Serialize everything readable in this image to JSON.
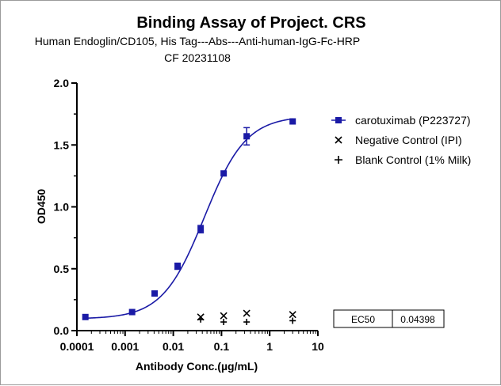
{
  "chart_data": {
    "type": "scatter",
    "title": "Binding Assay of Project. CRS",
    "subtitle_lines": [
      "Human Endoglin/CD105, His Tag---Abs---Anti-human-IgG-Fc-HRP",
      "CF 20231108"
    ],
    "xlabel": "Antibody Conc.(µg/mL)",
    "ylabel": "OD450",
    "x_scale": "log",
    "xlim": [
      0.0001,
      10
    ],
    "ylim": [
      0,
      2.0
    ],
    "x_tick_labels": [
      "0.0001",
      "0.001",
      "0.01",
      "0.1",
      "1",
      "10"
    ],
    "x_ticks": [
      0.0001,
      0.001,
      0.01,
      0.1,
      1,
      10
    ],
    "y_tick_labels": [
      "0.0",
      "0.5",
      "1.0",
      "1.5",
      "2.0"
    ],
    "y_ticks": [
      0,
      0.5,
      1.0,
      1.5,
      2.0
    ],
    "grid": false,
    "legend_position": "right",
    "series": [
      {
        "name": "carotuximab (P223727)",
        "marker": "square",
        "color": "#1a1aa6",
        "x": [
          0.00015,
          0.0014,
          0.0041,
          0.0123,
          0.037,
          0.111,
          0.333,
          3.0
        ],
        "y": [
          0.11,
          0.15,
          0.3,
          0.52,
          0.82,
          1.27,
          1.57,
          1.69
        ],
        "err": [
          0.01,
          0.01,
          0.015,
          0.025,
          0.03,
          0.01,
          0.07,
          0.01
        ],
        "fit_curve": {
          "bottom": 0.095,
          "top": 1.735,
          "ec50": 0.04398,
          "hill": 1.0
        }
      },
      {
        "name": "Negative Control (IPI)",
        "marker": "x",
        "color": "#000000",
        "x": [
          0.037,
          0.111,
          0.333,
          3.0
        ],
        "y": [
          0.11,
          0.12,
          0.14,
          0.13
        ]
      },
      {
        "name": "Blank Control (1% Milk)",
        "marker": "tick",
        "color": "#000000",
        "x": [
          0.037,
          0.111,
          0.333,
          3.0
        ],
        "y": [
          0.09,
          0.07,
          0.07,
          0.08
        ]
      }
    ],
    "ec50_table": {
      "label": "EC50",
      "value": "0.04398"
    }
  }
}
